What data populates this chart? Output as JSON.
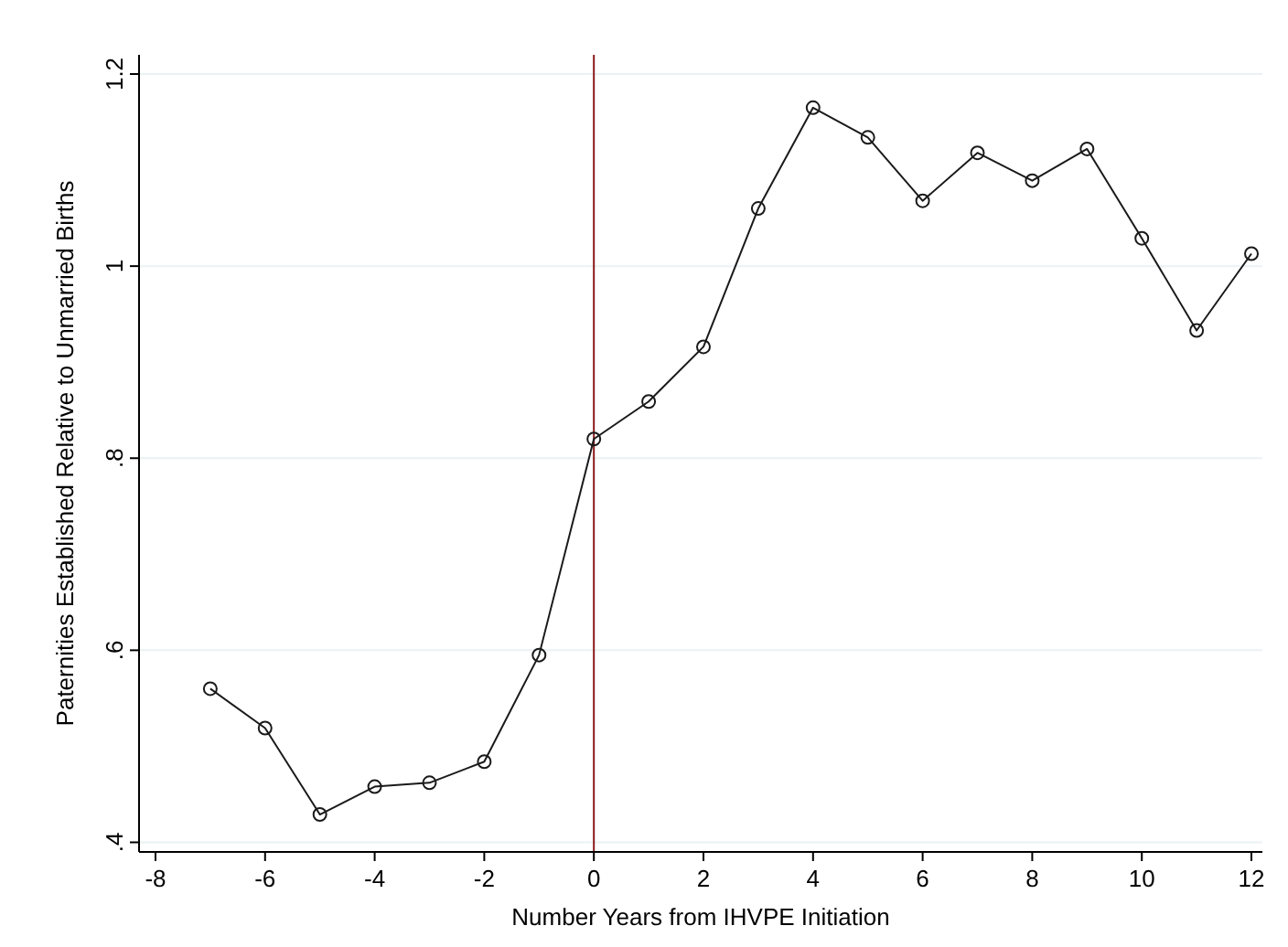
{
  "chart_data": {
    "type": "line",
    "xlabel": "Number Years from IHVPE Initiation",
    "ylabel": "Paternities Established Relative to Unmarried Births",
    "x": [
      -7,
      -6,
      -5,
      -4,
      -3,
      -2,
      -1,
      0,
      1,
      2,
      3,
      4,
      5,
      6,
      7,
      8,
      9,
      10,
      11,
      12
    ],
    "series": [
      {
        "color": "#1a1a1a",
        "values": [
          0.56,
          0.519,
          0.429,
          0.458,
          0.462,
          0.484,
          0.595,
          0.82,
          0.859,
          0.916,
          1.06,
          1.165,
          1.134,
          1.068,
          1.118,
          1.089,
          1.122,
          1.029,
          0.933,
          1.013
        ]
      }
    ],
    "xlim": [
      -8.3,
      12.2
    ],
    "xticks": [
      -8,
      -6,
      -4,
      -2,
      0,
      2,
      4,
      6,
      8,
      10,
      12
    ],
    "ylim": [
      0.39,
      1.22
    ],
    "yticks": [
      {
        "value": 0.4,
        "label": ".4"
      },
      {
        "value": 0.6,
        "label": ".6"
      },
      {
        "value": 0.8,
        "label": ".8"
      },
      {
        "value": 1,
        "label": "1"
      },
      {
        "value": 1.2,
        "label": "1.2"
      }
    ],
    "grid": "y",
    "marker": "circle",
    "line_style": "solid",
    "ref_lines": [
      {
        "axis": "x",
        "value": 0,
        "color": "#8b1a1a"
      }
    ]
  }
}
